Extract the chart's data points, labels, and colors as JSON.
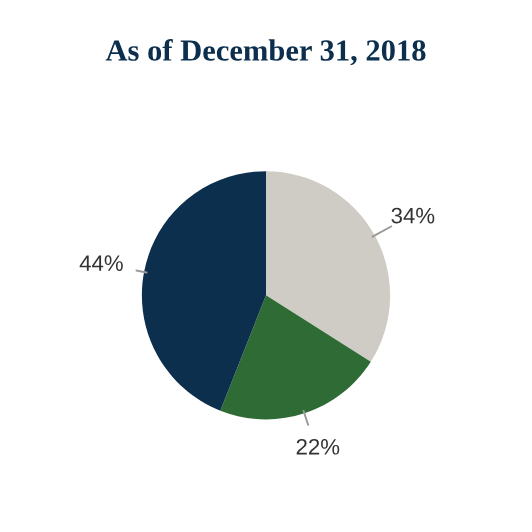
{
  "chart_data": {
    "type": "pie",
    "title": "As of December 31, 2018",
    "categories": [
      null,
      null,
      null
    ],
    "values": [
      34,
      22,
      44
    ],
    "colors": [
      "#cfccc6",
      "#2e6b35",
      "#0c2f4e"
    ],
    "value_labels": [
      "34%",
      "22%",
      "44%"
    ]
  }
}
